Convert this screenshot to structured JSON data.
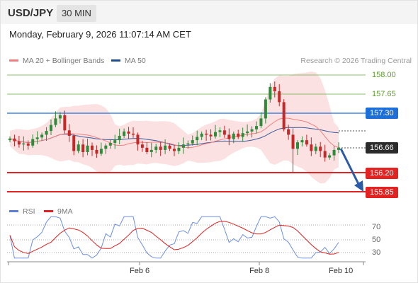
{
  "header": {
    "symbol": "USD/JPY",
    "timeframe": "30 MIN"
  },
  "datetime": "Monday, February 9, 2026 11:07:14 AM CET",
  "legend": [
    {
      "label": "MA 20 + Bollinger Bands",
      "color": "#f08080"
    },
    {
      "label": "MA 50",
      "color": "#1f4e8c"
    }
  ],
  "credit": "Research © 2026 Trading Central",
  "levels": {
    "r2": "158.00",
    "r1": "157.65",
    "pivot": "157.30",
    "last": "156.66",
    "s1": "156.20",
    "s2": "155.85"
  },
  "rsi_legend": [
    {
      "label": "RSI",
      "color": "#5b7fd6"
    },
    {
      "label": "9MA",
      "color": "#e02020"
    }
  ],
  "rsi_levels": {
    "l70": "70",
    "l50": "50",
    "l30": "30"
  },
  "xaxis": {
    "t1": "Feb 6",
    "t2": "Feb 8",
    "t3": "Feb 10"
  },
  "colors": {
    "resistance": "#6aa84f",
    "pivot": "#1c6fd9",
    "support": "#e32222",
    "bull": "#2e8b3a",
    "bear": "#c62828",
    "arrow": "#2b5aa6"
  },
  "chart_data": {
    "type": "candlestick",
    "price_range": [
      155.7,
      158.1
    ],
    "closes": [
      156.83,
      156.78,
      156.72,
      156.74,
      156.7,
      156.82,
      156.85,
      156.9,
      156.97,
      157.08,
      157.2,
      157.26,
      156.98,
      156.88,
      156.6,
      156.72,
      156.58,
      156.7,
      156.62,
      156.55,
      156.64,
      156.7,
      156.75,
      156.8,
      156.88,
      156.96,
      156.92,
      156.9,
      156.72,
      156.66,
      156.58,
      156.62,
      156.68,
      156.62,
      156.7,
      156.64,
      156.6,
      156.66,
      156.72,
      156.74,
      156.8,
      156.86,
      156.92,
      156.9,
      156.87,
      156.95,
      156.98,
      156.9,
      156.82,
      156.92,
      156.86,
      156.93,
      156.96,
      157.0,
      157.06,
      157.2,
      157.55,
      157.78,
      157.7,
      157.5,
      157.0,
      156.9,
      156.64,
      156.76,
      156.8,
      156.72,
      156.6,
      156.68,
      156.6,
      156.48,
      156.52,
      156.62,
      156.66
    ]
  }
}
